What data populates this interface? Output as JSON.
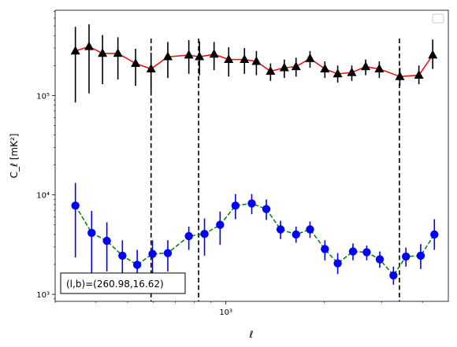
{
  "chart_data": {
    "type": "line",
    "xlabel": "ℓ",
    "ylabel": "C_ℓ  [mK²]",
    "xscale": "log",
    "yscale": "log",
    "xlim": [
      300,
      4800
    ],
    "ylim": [
      850,
      720000
    ],
    "grid": false,
    "legend": "top-right (empty)",
    "x_ticks": [
      {
        "value": 1000,
        "label": "10³"
      }
    ],
    "y_ticks": [
      {
        "value": 1000,
        "label": "10³"
      },
      {
        "value": 10000,
        "label": "10⁴"
      },
      {
        "value": 100000,
        "label": "10⁵"
      }
    ],
    "vlines": [
      590,
      825,
      3400
    ],
    "annotation": "(l,b)=(260.98,16.62)",
    "series": [
      {
        "style": "red solid line, black triangle markers",
        "line_color": "#ff0000",
        "marker_color": "#000000",
        "points": [
          {
            "x": 346,
            "y": 280000,
            "lo": 85000,
            "hi": 490000
          },
          {
            "x": 381,
            "y": 310000,
            "lo": 105000,
            "hi": 520000
          },
          {
            "x": 419,
            "y": 265000,
            "lo": 130000,
            "hi": 405000
          },
          {
            "x": 467,
            "y": 265000,
            "lo": 145000,
            "hi": 385000
          },
          {
            "x": 529,
            "y": 210000,
            "lo": 125000,
            "hi": 295000
          },
          {
            "x": 590,
            "y": 185000,
            "lo": 110000,
            "hi": 270000
          },
          {
            "x": 664,
            "y": 245000,
            "lo": 150000,
            "hi": 345000
          },
          {
            "x": 770,
            "y": 255000,
            "lo": 165000,
            "hi": 360000
          },
          {
            "x": 830,
            "y": 245000,
            "lo": 160000,
            "hi": 350000
          },
          {
            "x": 920,
            "y": 260000,
            "lo": 180000,
            "hi": 345000
          },
          {
            "x": 1020,
            "y": 230000,
            "lo": 155000,
            "hi": 305000
          },
          {
            "x": 1140,
            "y": 230000,
            "lo": 165000,
            "hi": 300000
          },
          {
            "x": 1240,
            "y": 220000,
            "lo": 160000,
            "hi": 280000
          },
          {
            "x": 1370,
            "y": 175000,
            "lo": 140000,
            "hi": 210000
          },
          {
            "x": 1510,
            "y": 190000,
            "lo": 150000,
            "hi": 230000
          },
          {
            "x": 1640,
            "y": 195000,
            "lo": 155000,
            "hi": 240000
          },
          {
            "x": 1810,
            "y": 235000,
            "lo": 190000,
            "hi": 280000
          },
          {
            "x": 2010,
            "y": 185000,
            "lo": 150000,
            "hi": 220000
          },
          {
            "x": 2200,
            "y": 165000,
            "lo": 135000,
            "hi": 200000
          },
          {
            "x": 2430,
            "y": 170000,
            "lo": 140000,
            "hi": 200000
          },
          {
            "x": 2680,
            "y": 195000,
            "lo": 160000,
            "hi": 230000
          },
          {
            "x": 2950,
            "y": 185000,
            "lo": 150000,
            "hi": 220000
          },
          {
            "x": 3410,
            "y": 155000,
            "lo": 125000,
            "hi": 190000
          },
          {
            "x": 3900,
            "y": 160000,
            "lo": 130000,
            "hi": 200000
          },
          {
            "x": 4300,
            "y": 255000,
            "lo": 185000,
            "hi": 365000
          }
        ]
      },
      {
        "style": "green dashed line, blue circle markers",
        "line_color": "#008000",
        "marker_color": "#0000ff",
        "points": [
          {
            "x": 346,
            "y": 7800,
            "lo": 2350,
            "hi": 13200
          },
          {
            "x": 388,
            "y": 4150,
            "lo": 1650,
            "hi": 6900
          },
          {
            "x": 432,
            "y": 3450,
            "lo": 1700,
            "hi": 5300
          },
          {
            "x": 482,
            "y": 2450,
            "lo": 1500,
            "hi": 3500
          },
          {
            "x": 535,
            "y": 1980,
            "lo": 1300,
            "hi": 2800
          },
          {
            "x": 596,
            "y": 2550,
            "lo": 1550,
            "hi": 3500
          },
          {
            "x": 664,
            "y": 2600,
            "lo": 1700,
            "hi": 3500
          },
          {
            "x": 770,
            "y": 3850,
            "lo": 2800,
            "hi": 4800
          },
          {
            "x": 860,
            "y": 4050,
            "lo": 2450,
            "hi": 5800
          },
          {
            "x": 960,
            "y": 5000,
            "lo": 3150,
            "hi": 6800
          },
          {
            "x": 1070,
            "y": 7800,
            "lo": 5700,
            "hi": 10200
          },
          {
            "x": 1200,
            "y": 8200,
            "lo": 6400,
            "hi": 10200
          },
          {
            "x": 1330,
            "y": 7200,
            "lo": 5600,
            "hi": 9000
          },
          {
            "x": 1470,
            "y": 4500,
            "lo": 3600,
            "hi": 5500
          },
          {
            "x": 1640,
            "y": 4000,
            "lo": 3300,
            "hi": 4800
          },
          {
            "x": 1810,
            "y": 4500,
            "lo": 3700,
            "hi": 5400
          },
          {
            "x": 2010,
            "y": 2850,
            "lo": 2200,
            "hi": 3500
          },
          {
            "x": 2200,
            "y": 2050,
            "lo": 1600,
            "hi": 2600
          },
          {
            "x": 2450,
            "y": 2700,
            "lo": 2200,
            "hi": 3250
          },
          {
            "x": 2700,
            "y": 2650,
            "lo": 2200,
            "hi": 3100
          },
          {
            "x": 2960,
            "y": 2250,
            "lo": 1850,
            "hi": 2700
          },
          {
            "x": 3260,
            "y": 1550,
            "lo": 1250,
            "hi": 1900
          },
          {
            "x": 3560,
            "y": 2400,
            "lo": 1900,
            "hi": 2950
          },
          {
            "x": 3950,
            "y": 2450,
            "lo": 1800,
            "hi": 3200
          },
          {
            "x": 4350,
            "y": 4000,
            "lo": 2800,
            "hi": 5700
          }
        ]
      }
    ]
  }
}
